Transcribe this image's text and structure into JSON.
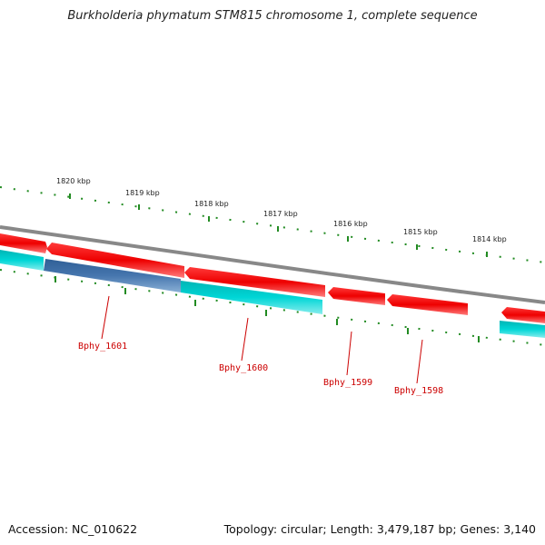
{
  "title": "Burkholderia phymatum STM815 chromosome 1, complete sequence",
  "footer": {
    "accession": "Accession: NC_010622",
    "summary": "Topology: circular; Length: 3,479,187 bp; Genes: 3,140"
  },
  "colors": {
    "backbone": "#808080",
    "forward_gene": "#ff0000",
    "reverse_gene": "#00cccc",
    "highlighted_gene": "#3f6fa5",
    "tick": "#228b22",
    "label_red": "#cc0000"
  },
  "ticks_outer": [
    "1820 kbp",
    "1819 kbp",
    "1818 kbp",
    "1817 kbp",
    "1816 kbp",
    "1815 kbp",
    "1814 kbp"
  ],
  "gene_labels": [
    "Bphy_1601",
    "Bphy_1600",
    "Bphy_1599",
    "Bphy_1598"
  ]
}
